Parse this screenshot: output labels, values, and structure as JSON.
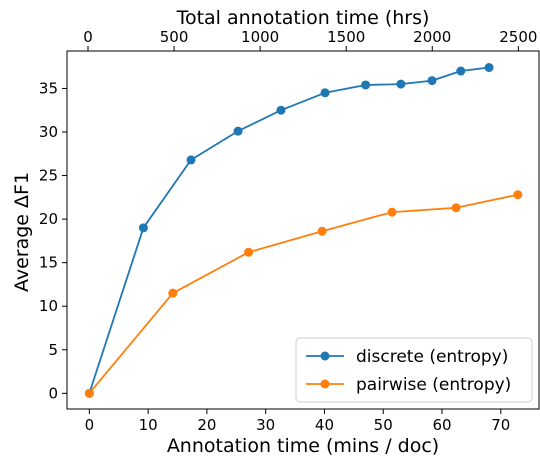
{
  "chart_data": {
    "type": "line",
    "xlabel": "Annotation time (mins / doc)",
    "ylabel": "Average ΔF1",
    "top_xlabel": "Total annotation time (hrs)",
    "xlim": [
      -3.8,
      76.5
    ],
    "ylim": [
      -1.8,
      39.3
    ],
    "secondary_xlim": [
      -122,
      2620
    ],
    "x_ticks": [
      0,
      10,
      20,
      30,
      40,
      50,
      60,
      70
    ],
    "y_ticks": [
      0,
      5,
      10,
      15,
      20,
      25,
      30,
      35
    ],
    "top_ticks": [
      0,
      500,
      1000,
      1500,
      2000,
      2500
    ],
    "grid": false,
    "legend_position": "lower-right",
    "series": [
      {
        "name": "discrete (entropy)",
        "color": "#1f77b4",
        "x": [
          0,
          9.2,
          17.3,
          25.3,
          32.6,
          40.1,
          47.0,
          53.0,
          58.3,
          63.2,
          68.0
        ],
        "y": [
          0,
          19.0,
          26.8,
          30.1,
          32.5,
          34.5,
          35.4,
          35.5,
          35.9,
          37.0,
          37.4
        ]
      },
      {
        "name": "pairwise (entropy)",
        "color": "#ff7f0e",
        "x": [
          0,
          14.2,
          27.1,
          39.6,
          51.5,
          62.4,
          72.9
        ],
        "y": [
          0,
          11.5,
          16.2,
          18.6,
          20.8,
          21.3,
          22.8
        ]
      }
    ]
  }
}
